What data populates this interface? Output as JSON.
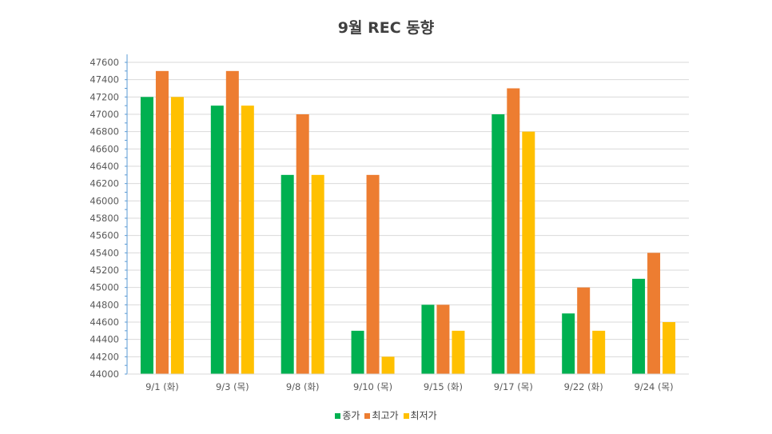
{
  "chart_data": {
    "type": "bar",
    "title": "9월 REC 동향",
    "categories": [
      "9/1 (화)",
      "9/3 (목)",
      "9/8 (화)",
      "9/10 (목)",
      "9/15 (화)",
      "9/17 (목)",
      "9/22 (화)",
      "9/24 (목)"
    ],
    "series": [
      {
        "name": "종가",
        "color": "#00b050",
        "values": [
          47200,
          47100,
          46300,
          44500,
          44800,
          47000,
          44700,
          45100
        ]
      },
      {
        "name": "최고가",
        "color": "#ed7d31",
        "values": [
          47500,
          47500,
          47000,
          46300,
          44800,
          47300,
          45000,
          45400
        ]
      },
      {
        "name": "최저가",
        "color": "#ffc000",
        "values": [
          47200,
          47100,
          46300,
          44200,
          44500,
          46800,
          44500,
          44600
        ]
      }
    ],
    "ylim": [
      44000,
      47600
    ],
    "ytick_step": 200,
    "yticks": [
      "44000",
      "44200",
      "44400",
      "44600",
      "44800",
      "45000",
      "45200",
      "45400",
      "45600",
      "45800",
      "46000",
      "46200",
      "46400",
      "46600",
      "46800",
      "47000",
      "47200",
      "47400",
      "47600"
    ],
    "grid": true,
    "legend_position": "bottom"
  }
}
